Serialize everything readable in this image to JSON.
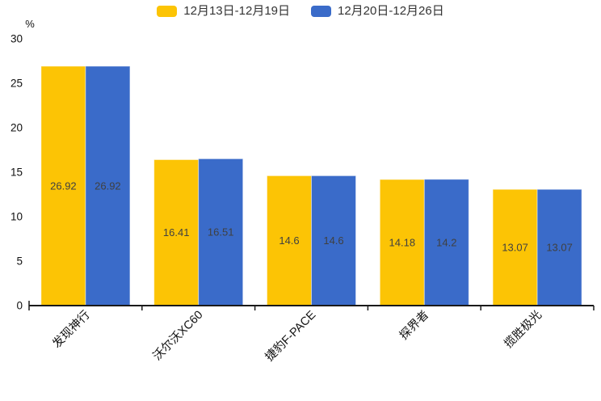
{
  "legend": {
    "position": "top"
  },
  "chart_data": {
    "type": "bar",
    "title": "",
    "unit_label": "%",
    "categories": [
      "发现神行",
      "沃尔沃XC60",
      "捷豹F-PACE",
      "探界者",
      "揽胜极光"
    ],
    "series": [
      {
        "name": "12月13日-12月19日",
        "color": "#FCC405",
        "values": [
          26.92,
          16.41,
          14.6,
          14.18,
          13.07
        ]
      },
      {
        "name": "12月20日-12月26日",
        "color": "#3A6BC9",
        "values": [
          26.92,
          16.51,
          14.6,
          14.2,
          13.07
        ]
      }
    ],
    "ylim": [
      0,
      30
    ],
    "yticks": [
      0,
      5,
      10,
      15,
      20,
      25,
      30
    ],
    "grid": false,
    "legend_position": "top",
    "value_labels": "inside-center",
    "x_label_rotation_deg": -45,
    "axis_color": "#1a1a1a",
    "tick_label_color": "#111111",
    "value_label_color": "#404040"
  }
}
